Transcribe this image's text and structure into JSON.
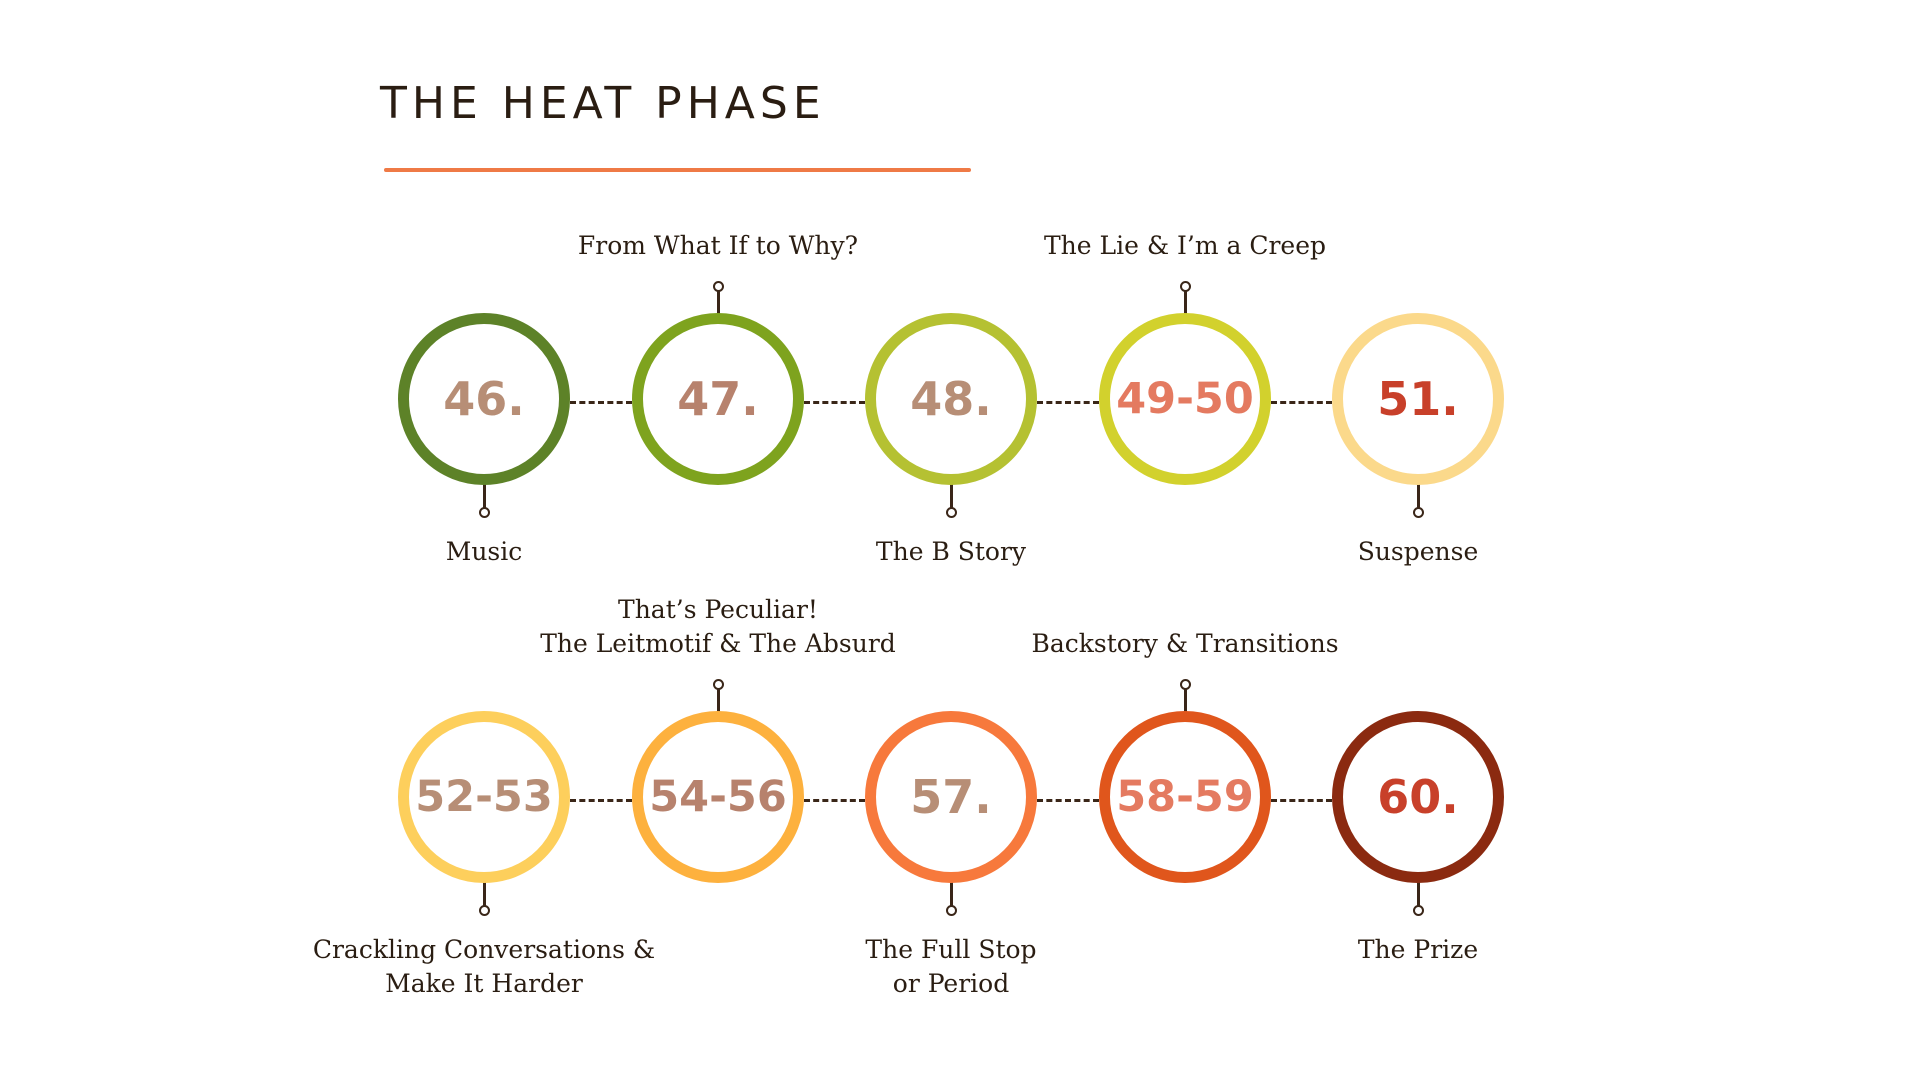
{
  "title": "THE HEAT PHASE",
  "colors": {
    "accent": "#ef7a46",
    "connector": "#3a2618",
    "text": "#2a1d12"
  },
  "rows": [
    {
      "nodes": [
        {
          "number": "46.",
          "label": "Music",
          "label_position": "below",
          "ring_color": "#5d8228",
          "number_color": "#b78e76"
        },
        {
          "number": "47.",
          "label": "From What If to Why?",
          "label_position": "above",
          "ring_color": "#7ea31e",
          "number_color": "#b7826d"
        },
        {
          "number": "48.",
          "label": "The B Story",
          "label_position": "below",
          "ring_color": "#b5c132",
          "number_color": "#b78e76"
        },
        {
          "number": "49-50",
          "label": "The Lie & I’m a Creep",
          "label_position": "above",
          "ring_color": "#d2d12d",
          "number_color": "#e47a60"
        },
        {
          "number": "51.",
          "label": "Suspense",
          "label_position": "below",
          "ring_color": "#fbd98b",
          "number_color": "#c8402a"
        }
      ]
    },
    {
      "nodes": [
        {
          "number": "52-53",
          "label": "Crackling Conversations &\nMake It Harder",
          "label_position": "below",
          "ring_color": "#fdcf5c",
          "number_color": "#b78e76"
        },
        {
          "number": "54-56",
          "label": "That’s Peculiar!\nThe Leitmotif & The Absurd",
          "label_position": "above",
          "ring_color": "#fdb13e",
          "number_color": "#b7826d"
        },
        {
          "number": "57.",
          "label": "The Full Stop\nor Period",
          "label_position": "below",
          "ring_color": "#f7793c",
          "number_color": "#b78e76"
        },
        {
          "number": "58-59",
          "label": "Backstory & Transitions",
          "label_position": "above",
          "ring_color": "#e0561c",
          "number_color": "#e47a60"
        },
        {
          "number": "60.",
          "label": "The Prize",
          "label_position": "below",
          "ring_color": "#8b2a10",
          "number_color": "#c8402a"
        }
      ]
    }
  ]
}
